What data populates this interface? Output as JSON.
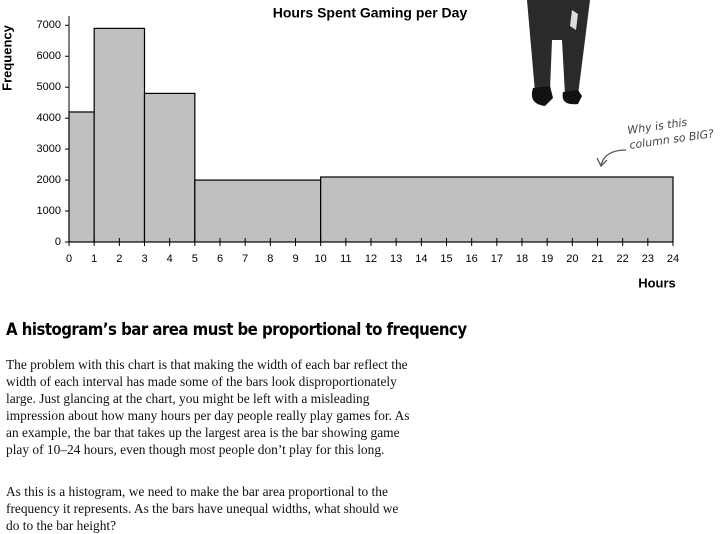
{
  "chart_data": {
    "type": "histogram",
    "title": "Hours Spent Gaming per Day",
    "x_label": "Hours",
    "y_label": "Frequency",
    "bins": [
      0,
      1,
      3,
      5,
      10,
      24
    ],
    "values": [
      4200,
      6900,
      4800,
      2000,
      2100
    ],
    "color": "#c0c0c0",
    "xlim": [
      0,
      24
    ],
    "xticks": [
      0,
      1,
      2,
      3,
      4,
      5,
      6,
      7,
      8,
      9,
      10,
      11,
      12,
      13,
      14,
      15,
      16,
      17,
      18,
      19,
      20,
      21,
      22,
      23,
      24
    ],
    "ylim": [
      0,
      7300
    ],
    "yticks": [
      0,
      1000,
      2000,
      3000,
      4000,
      5000,
      6000,
      7000
    ],
    "annotation": "Why is this column so BIG?"
  },
  "document": {
    "heading": "A histogram’s bar area must be proportional to frequency",
    "paragraphs": [
      "The problem with this chart is that making the width of each bar reflect the width of each interval has made some of the bars look disproportionately large. Just glancing at the chart, you might be left with a misleading impression about how many hours per day people really play games for. As an example, the bar that takes up the largest area is the bar showing game play of 10–24 hours, even though most people don’t play for this long.",
      "As this is a histogram, we need to make the bar area proportional to the frequency it represents. As the bars have unequal widths, what should we do to the bar height?"
    ]
  }
}
